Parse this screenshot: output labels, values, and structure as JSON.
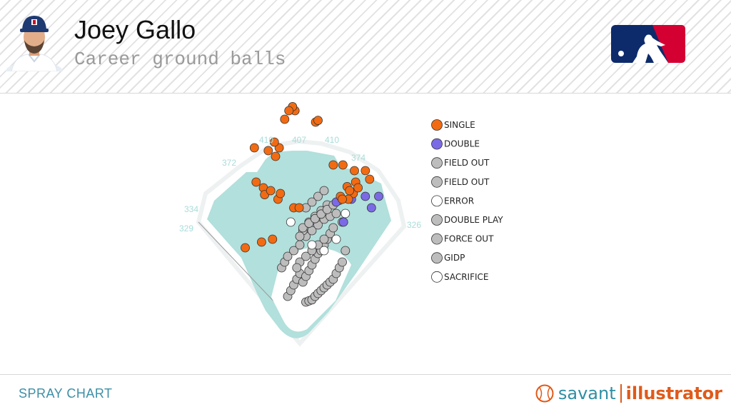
{
  "header": {
    "player_name": "Joey Gallo",
    "subtitle": "Career ground balls"
  },
  "footer": {
    "label": "SPRAY CHART",
    "brand_left": "savant",
    "brand_right": "illustrator"
  },
  "colors": {
    "single": "#f26b12",
    "double": "#7b6ae6",
    "out": "#bdbdbd",
    "white": "#ffffff",
    "field": "#b2e0dc",
    "accent": "#2f8fa3",
    "brand_orange": "#e05a1a"
  },
  "icons": [
    "player-headshot",
    "mlb-logo",
    "baseball-icon"
  ],
  "chart_data": {
    "type": "scatter",
    "title": "",
    "fence_distances": {
      "left_foul": "329",
      "left": "334",
      "left_center": "372",
      "center_left": "410",
      "center": "407",
      "center_right": "410",
      "right_center": "374",
      "right_foul": "326"
    },
    "legend": [
      {
        "label": "SINGLE",
        "color": "#f26b12"
      },
      {
        "label": "DOUBLE",
        "color": "#7b6ae6"
      },
      {
        "label": "FIELD OUT",
        "color": "#bdbdbd"
      },
      {
        "label": "FIELD OUT",
        "color": "#bdbdbd"
      },
      {
        "label": "ERROR",
        "color": "#ffffff"
      },
      {
        "label": "DOUBLE PLAY",
        "color": "#bdbdbd"
      },
      {
        "label": "FORCE OUT",
        "color": "#bdbdbd"
      },
      {
        "label": "GIDP",
        "color": "#bdbdbd"
      },
      {
        "label": "SACRIFICE",
        "color": "#ffffff"
      }
    ],
    "series": [
      {
        "event": "single",
        "x": [
          -90,
          -63,
          -45,
          -75,
          -52,
          -40,
          -72,
          -60,
          -58,
          -48,
          -36,
          -32,
          -10,
          -1,
          55,
          71,
          90,
          108,
          115,
          92,
          78,
          88,
          80,
          82,
          67,
          96,
          70,
          26,
          30,
          -8,
          -12,
          -18,
          -25,
          -34,
          -42
        ],
        "y": [
          155,
          165,
          170,
          330,
          325,
          315,
          270,
          260,
          248,
          255,
          240,
          250,
          225,
          225,
          300,
          300,
          290,
          290,
          275,
          270,
          262,
          250,
          240,
          255,
          245,
          260,
          240,
          375,
          378,
          395,
          402,
          395,
          380,
          330,
          340
        ]
      },
      {
        "event": "double",
        "x": [
          85,
          108,
          130,
          118,
          72,
          60
        ],
        "y": [
          240,
          245,
          245,
          225,
          200,
          235
        ]
      },
      {
        "event": "out",
        "x": [
          10,
          15,
          20,
          25,
          30,
          35,
          40,
          45,
          50,
          55,
          60,
          65,
          70,
          -20,
          -15,
          -10,
          -5,
          0,
          5,
          10,
          15,
          20,
          25,
          30,
          35,
          40,
          45,
          50,
          55,
          0,
          10,
          20,
          30,
          40,
          -30,
          -25,
          -20,
          -10,
          0,
          10,
          20,
          30,
          40,
          50,
          60,
          -5,
          5,
          15,
          25,
          35,
          45,
          0,
          10,
          20,
          30,
          40,
          5,
          15,
          25,
          35,
          45,
          55,
          65,
          70,
          75
        ],
        "y": [
          60,
          62,
          64,
          70,
          75,
          80,
          85,
          90,
          95,
          100,
          110,
          120,
          130,
          70,
          80,
          90,
          100,
          110,
          95,
          105,
          115,
          125,
          135,
          145,
          150,
          160,
          170,
          180,
          190,
          130,
          140,
          150,
          160,
          170,
          120,
          130,
          140,
          150,
          160,
          175,
          185,
          195,
          205,
          210,
          215,
          120,
          185,
          200,
          210,
          220,
          230,
          175,
          225,
          235,
          245,
          255,
          190,
          198,
          206,
          214,
          222,
          230,
          238,
          200,
          150
        ]
      },
      {
        "event": "error",
        "x": [
          -15,
          40,
          60,
          75,
          20
        ],
        "y": [
          200,
          150,
          170,
          215,
          160
        ]
      }
    ]
  }
}
